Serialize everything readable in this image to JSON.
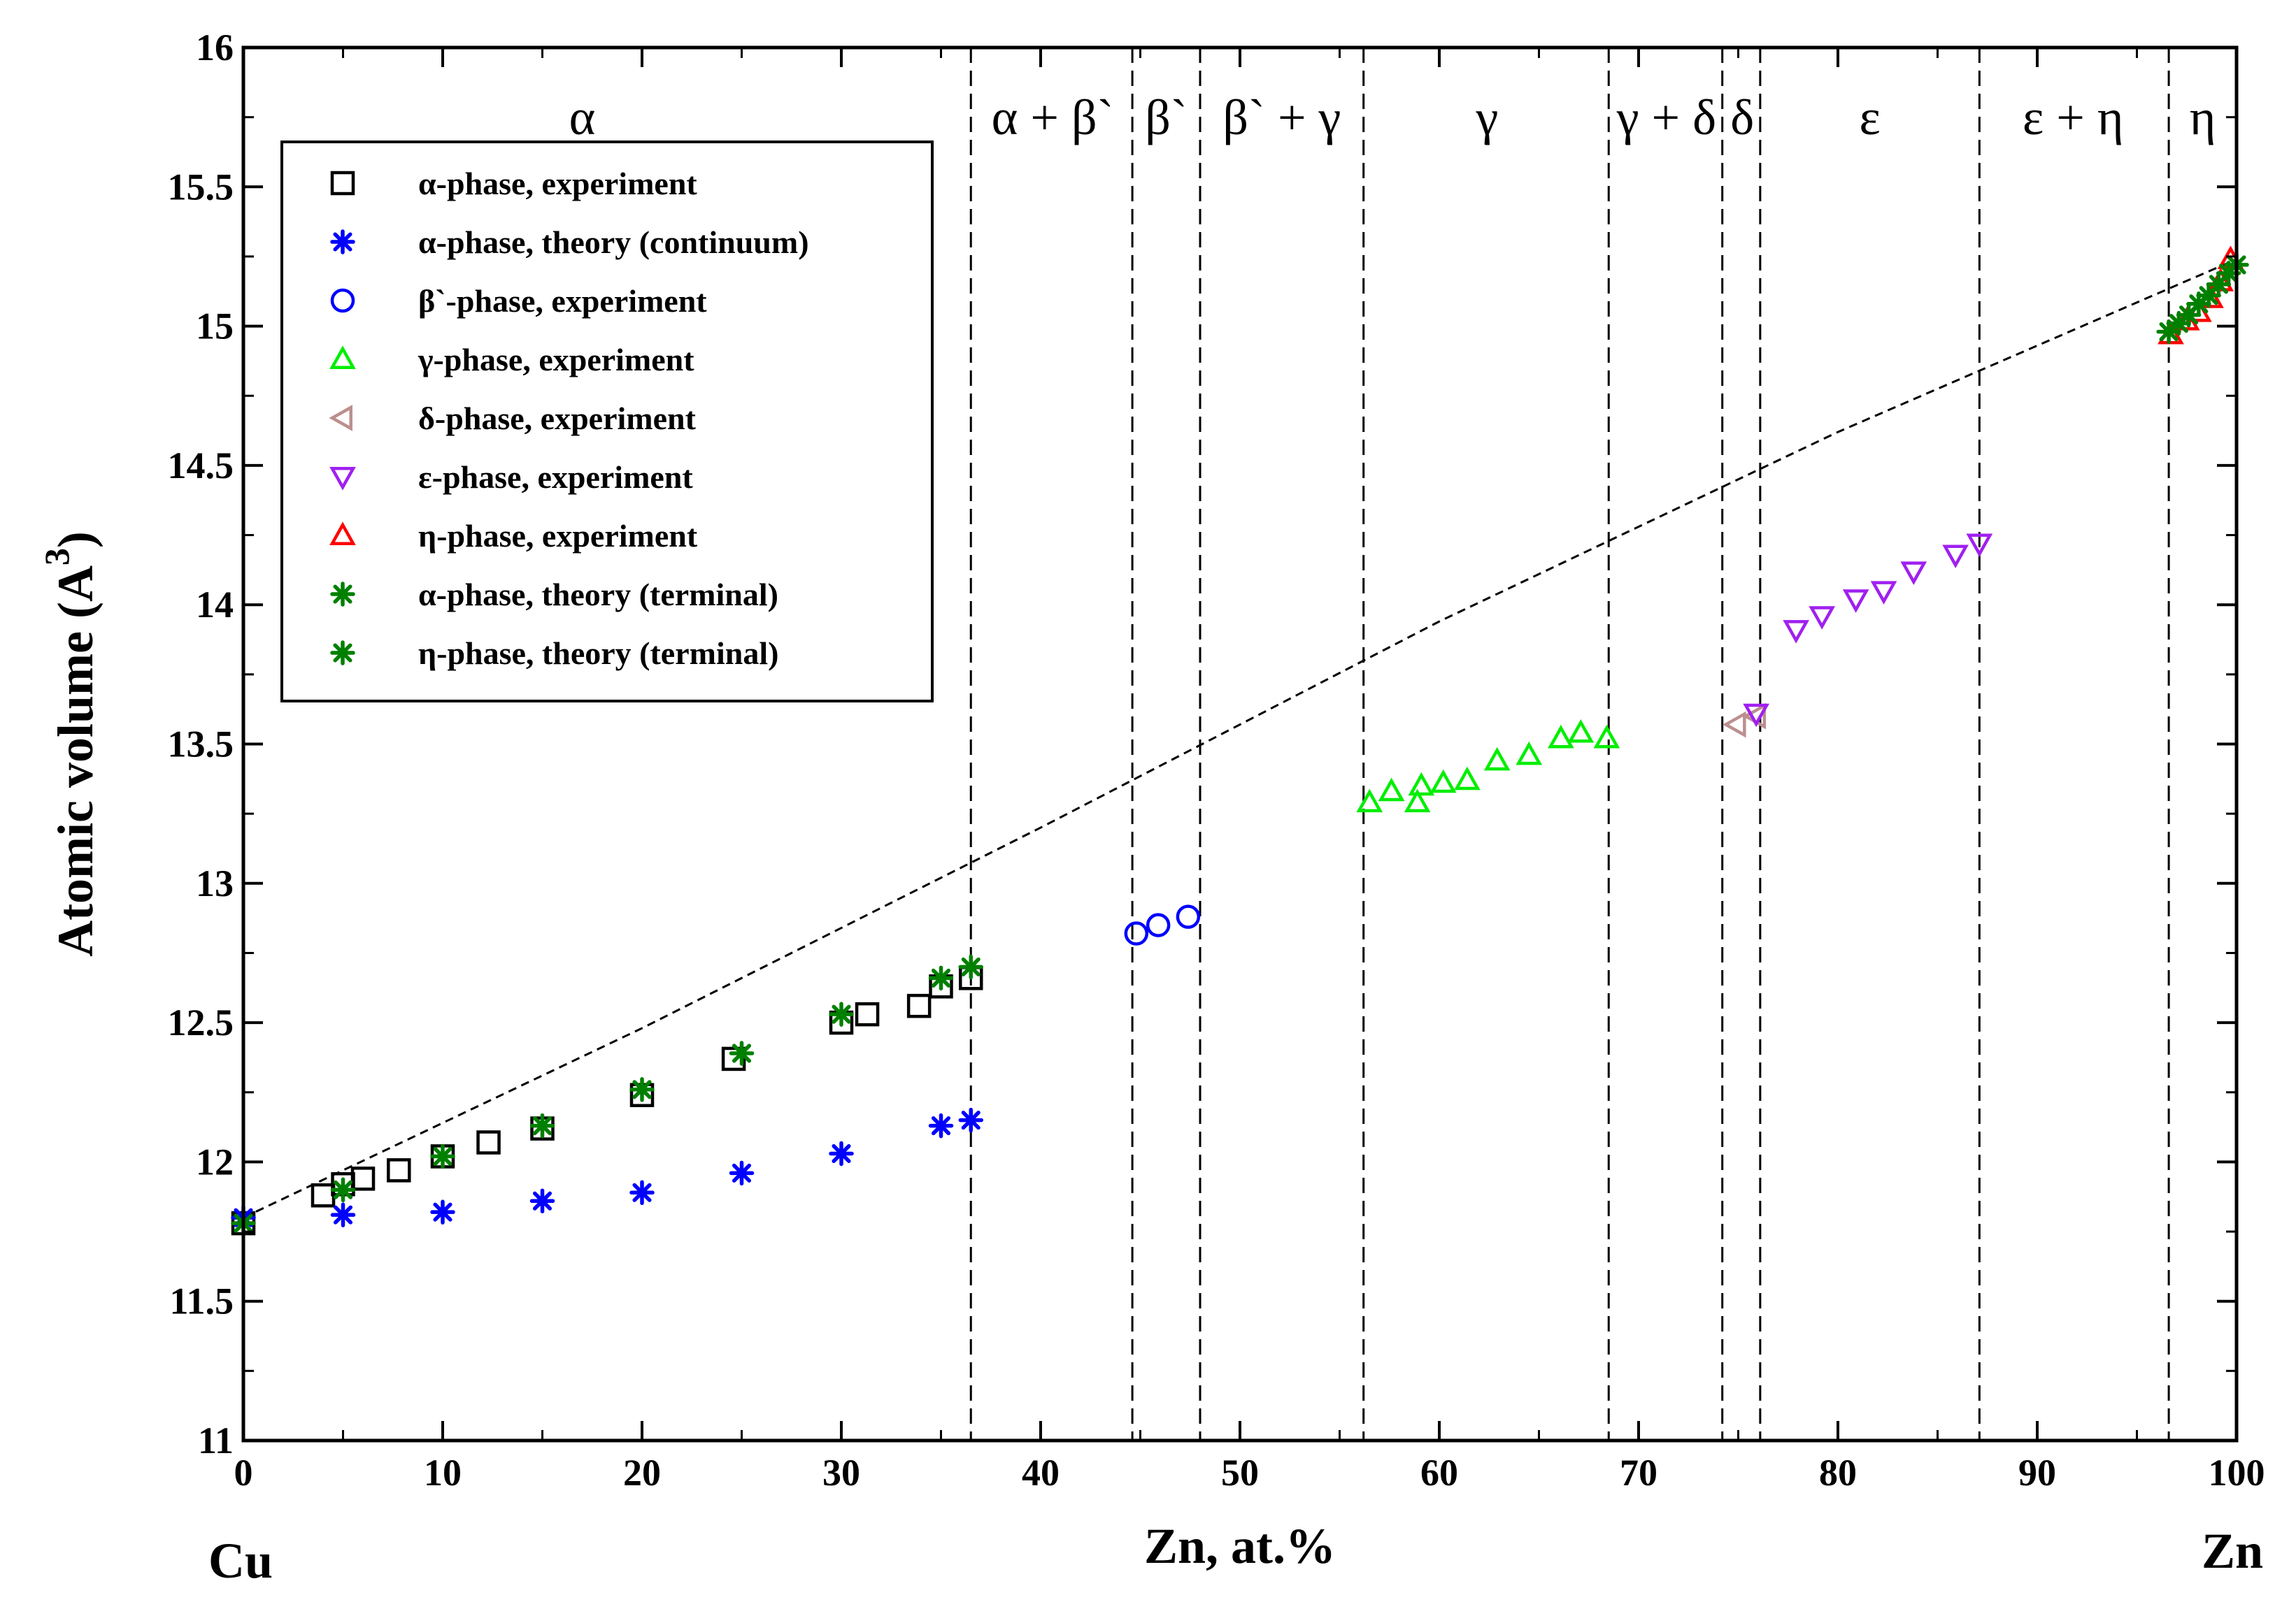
{
  "chart_data": {
    "type": "scatter",
    "xlabel": "Zn, at.%",
    "ylabel": "Atomic volume (A",
    "ylabel_sup": "3",
    "ylabel_close": ")",
    "corner_labels": {
      "left": "Cu",
      "right": "Zn"
    },
    "xlim": [
      0,
      100
    ],
    "ylim": [
      11,
      16
    ],
    "xticks": [
      0,
      10,
      20,
      30,
      40,
      50,
      60,
      70,
      80,
      90,
      100
    ],
    "xtick_labels": [
      "0",
      "10",
      "20",
      "30",
      "40",
      "50",
      "60",
      "70",
      "80",
      "90",
      "100"
    ],
    "yticks": [
      11,
      11.5,
      12,
      12.5,
      13,
      13.5,
      14,
      14.5,
      15,
      15.5,
      16
    ],
    "ytick_labels": [
      "11",
      "11.5",
      "12",
      "12.5",
      "13",
      "13.5",
      "14",
      "14.5",
      "15",
      "15.5",
      "16"
    ],
    "phase_boundaries": [
      36.5,
      44.6,
      48.0,
      56.2,
      68.5,
      74.2,
      76.1,
      87.1,
      96.6
    ],
    "phase_labels": [
      {
        "text": "α",
        "x": 17
      },
      {
        "text": "α + β`",
        "x": 40.6
      },
      {
        "text": "β`",
        "x": 46.3
      },
      {
        "text": "β` + γ",
        "x": 52.1
      },
      {
        "text": "γ",
        "x": 62.4
      },
      {
        "text": "γ + δ",
        "x": 71.4
      },
      {
        "text": "δ",
        "x": 75.2
      },
      {
        "text": "ε",
        "x": 81.6
      },
      {
        "text": "ε + η",
        "x": 91.8
      },
      {
        "text": "η",
        "x": 98.3
      }
    ],
    "reference_line": {
      "x": [
        0,
        20,
        40,
        60,
        80,
        100
      ],
      "y": [
        11.8,
        12.48,
        13.2,
        13.94,
        14.62,
        15.24
      ]
    },
    "series": [
      {
        "name": "α-phase, experiment",
        "marker": "square",
        "color": "#000000",
        "x": [
          0,
          4,
          5,
          6,
          7.8,
          10,
          12.3,
          15,
          20,
          24.6,
          30,
          31.3,
          33.9,
          35,
          36.5
        ],
        "y": [
          11.78,
          11.88,
          11.92,
          11.94,
          11.97,
          12.02,
          12.07,
          12.12,
          12.24,
          12.37,
          12.5,
          12.53,
          12.56,
          12.63,
          12.66
        ]
      },
      {
        "name": "α-phase, theory (continuum)",
        "marker": "star",
        "color": "#0000ff",
        "x": [
          0,
          5,
          10,
          15,
          20,
          25,
          30,
          35,
          36.5
        ],
        "y": [
          11.8,
          11.81,
          11.82,
          11.86,
          11.89,
          11.96,
          12.03,
          12.13,
          12.15
        ]
      },
      {
        "name": "β`-phase, experiment",
        "marker": "circle",
        "color": "#0000ff",
        "x": [
          44.8,
          45.9,
          47.4
        ],
        "y": [
          12.82,
          12.85,
          12.88
        ]
      },
      {
        "name": "γ-phase, experiment",
        "marker": "triangle-up",
        "color": "#00ee00",
        "x": [
          56.5,
          57.6,
          58.9,
          59.1,
          60.2,
          61.4,
          62.9,
          64.5,
          66.1,
          67.1,
          68.4
        ],
        "y": [
          13.29,
          13.33,
          13.29,
          13.35,
          13.36,
          13.37,
          13.44,
          13.46,
          13.52,
          13.54,
          13.52
        ]
      },
      {
        "name": "δ-phase, experiment",
        "marker": "triangle-left",
        "color": "#bc8f8f",
        "x": [
          74.9,
          75.9
        ],
        "y": [
          13.57,
          13.6
        ]
      },
      {
        "name": "ε-phase, experiment",
        "marker": "triangle-down",
        "color": "#a020f0",
        "x": [
          75.9,
          77.9,
          79.2,
          80.9,
          82.3,
          83.8,
          85.9,
          87.1
        ],
        "y": [
          13.61,
          13.91,
          13.96,
          14.02,
          14.05,
          14.12,
          14.18,
          14.22
        ]
      },
      {
        "name": "η-phase, experiment",
        "marker": "triangle-up",
        "color": "#ff0000",
        "x": [
          96.7,
          97.5,
          98.1,
          98.7,
          99.2,
          99.7
        ],
        "y": [
          14.97,
          15.02,
          15.05,
          15.1,
          15.16,
          15.24
        ]
      },
      {
        "name": "α-phase, theory (terminal)",
        "marker": "star",
        "color": "#008000",
        "x": [
          0,
          5,
          10,
          15,
          20,
          25,
          30,
          35,
          36.5
        ],
        "y": [
          11.78,
          11.9,
          12.02,
          12.13,
          12.26,
          12.39,
          12.53,
          12.66,
          12.7
        ]
      },
      {
        "name": "η-phase, theory (terminal)",
        "marker": "star",
        "color": "#008000",
        "x": [
          96.6,
          97.1,
          97.6,
          98.1,
          98.6,
          99.1,
          99.6,
          100
        ],
        "y": [
          14.98,
          15.01,
          15.04,
          15.08,
          15.11,
          15.15,
          15.19,
          15.22
        ]
      }
    ]
  }
}
